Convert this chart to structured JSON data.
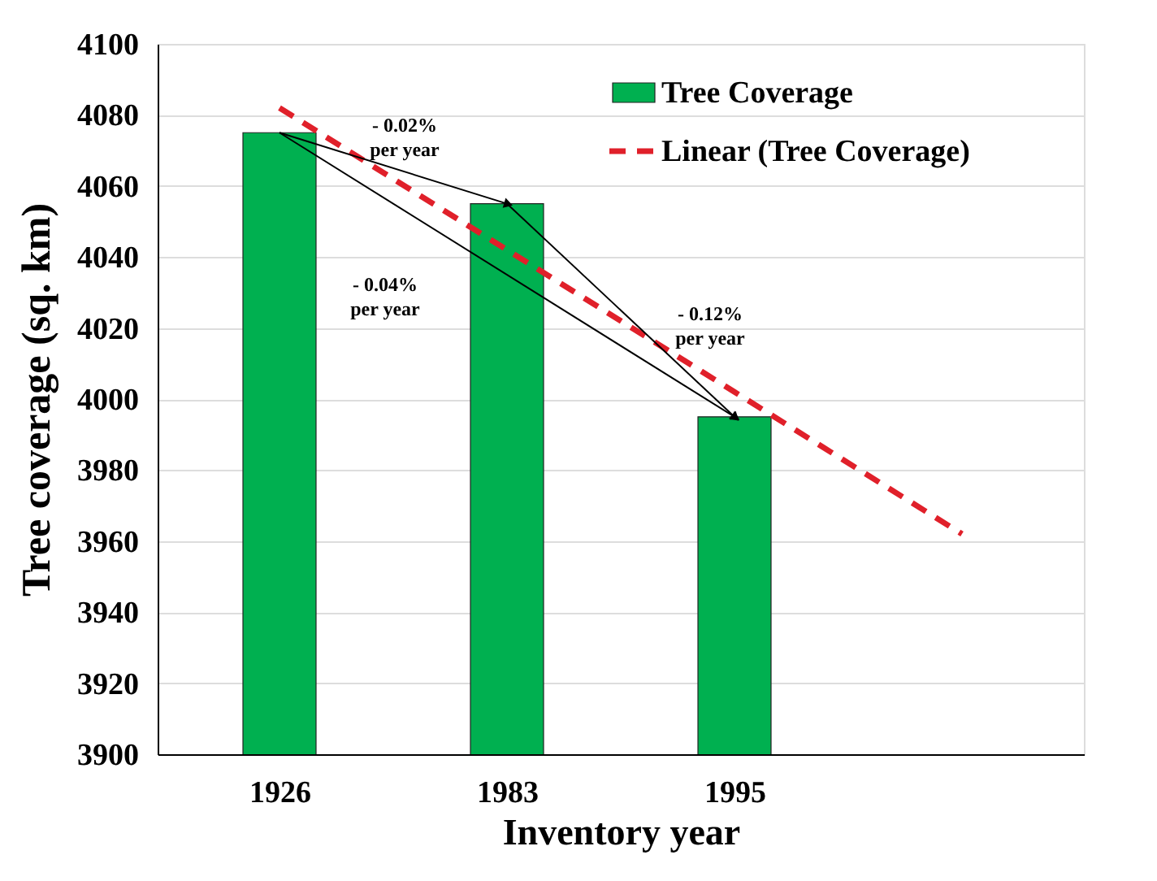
{
  "chart_data": {
    "type": "bar",
    "xlabel": "Inventory year",
    "ylabel": "Tree coverage (sq. km)",
    "categories": [
      "1926",
      "1983",
      "1995",
      null
    ],
    "series": [
      {
        "name": "Tree Coverage",
        "color": "#00b050",
        "values": [
          4075,
          4055,
          3995,
          null
        ]
      },
      {
        "name": "Linear (Tree Coverage)",
        "type": "line",
        "line_style": "dashed",
        "color": "#e0202a",
        "values": [
          4082,
          4042,
          4002,
          3962
        ]
      }
    ],
    "ylim": [
      3900,
      4100
    ],
    "yticks": [
      3900,
      3920,
      3940,
      3960,
      3980,
      4000,
      4020,
      4040,
      4060,
      4080,
      4100
    ],
    "grid": "y",
    "legend": "top right",
    "annotations": [
      "- 0.02%\nper year",
      "- 0.04%\nper year",
      "- 0.12%\nper year"
    ]
  }
}
